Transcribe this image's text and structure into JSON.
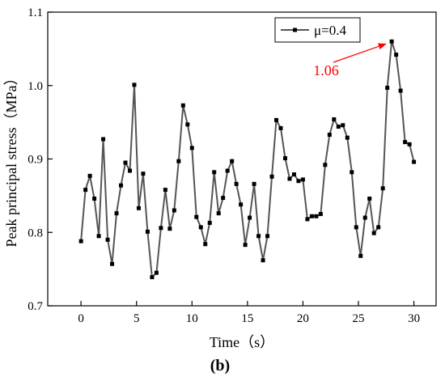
{
  "chart_data": {
    "type": "line",
    "xlabel": "Time（s）",
    "ylabel": "Peak principal stress（MPa）",
    "panel_label": "(b)",
    "xlim": [
      -3,
      32
    ],
    "ylim": [
      0.7,
      1.1
    ],
    "x_ticks": [
      0,
      5,
      10,
      15,
      20,
      25,
      30
    ],
    "y_ticks": [
      0.7,
      0.8,
      0.9,
      1.0,
      1.1
    ],
    "x_tick_labels": [
      "0",
      "5",
      "10",
      "15",
      "20",
      "25",
      "30"
    ],
    "y_tick_labels": [
      "0.7",
      "0.8",
      "0.9",
      "1.0",
      "1.1"
    ],
    "grid": false,
    "legend_position": "top-right",
    "series": [
      {
        "name": "μ=0.4",
        "color": "#555555",
        "marker_color": "#000000",
        "x": [
          0,
          0.4,
          0.8,
          1.2,
          1.6,
          2.0,
          2.4,
          2.8,
          3.2,
          3.6,
          4.0,
          4.4,
          4.8,
          5.2,
          5.6,
          6.0,
          6.4,
          6.8,
          7.2,
          7.6,
          8.0,
          8.4,
          8.8,
          9.2,
          9.6,
          10.0,
          10.4,
          10.8,
          11.2,
          11.6,
          12.0,
          12.4,
          12.8,
          13.2,
          13.6,
          14.0,
          14.4,
          14.8,
          15.2,
          15.6,
          16.0,
          16.4,
          16.8,
          17.2,
          17.6,
          18.0,
          18.4,
          18.8,
          19.2,
          19.6,
          20.0,
          20.4,
          20.8,
          21.2,
          21.6,
          22.0,
          22.4,
          22.8,
          23.2,
          23.6,
          24.0,
          24.4,
          24.8,
          25.2,
          25.6,
          26.0,
          26.4,
          26.8,
          27.2,
          27.6,
          28.0,
          28.4,
          28.8,
          29.2,
          29.6,
          30.0
        ],
        "values": [
          0.788,
          0.858,
          0.877,
          0.846,
          0.795,
          0.927,
          0.79,
          0.757,
          0.826,
          0.864,
          0.895,
          0.884,
          1.001,
          0.833,
          0.88,
          0.801,
          0.739,
          0.745,
          0.806,
          0.858,
          0.805,
          0.83,
          0.897,
          0.973,
          0.947,
          0.915,
          0.821,
          0.807,
          0.784,
          0.813,
          0.882,
          0.826,
          0.847,
          0.884,
          0.897,
          0.866,
          0.838,
          0.783,
          0.82,
          0.866,
          0.795,
          0.762,
          0.795,
          0.876,
          0.953,
          0.942,
          0.901,
          0.873,
          0.879,
          0.87,
          0.872,
          0.818,
          0.822,
          0.822,
          0.825,
          0.892,
          0.933,
          0.954,
          0.944,
          0.946,
          0.929,
          0.882,
          0.807,
          0.768,
          0.82,
          0.846,
          0.799,
          0.807,
          0.86,
          0.997,
          1.06,
          1.042,
          0.993,
          0.923,
          0.92,
          0.896
        ]
      }
    ],
    "annotations": [
      {
        "text": "1.06",
        "color": "#ff0000",
        "target_x": 27.9,
        "target_y": 1.06
      }
    ]
  }
}
